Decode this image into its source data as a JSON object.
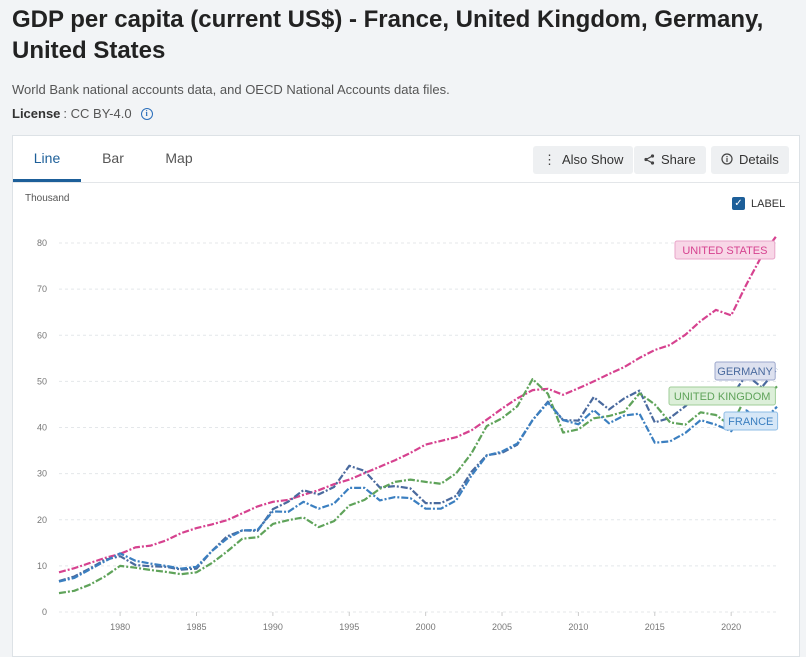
{
  "header": {
    "title": "GDP per capita (current US$) - France, United Kingdom, Germany, United States",
    "source": "World Bank national accounts data, and OECD National Accounts data files.",
    "license_label": "License",
    "license_value": " : CC BY-4.0"
  },
  "tabs": [
    {
      "label": "Line",
      "active": true
    },
    {
      "label": "Bar",
      "active": false
    },
    {
      "label": "Map",
      "active": false
    }
  ],
  "toolbar": {
    "also_show": "Also Show",
    "share": "Share",
    "details": "Details"
  },
  "label_toggle": {
    "label": "LABEL",
    "checked": true
  },
  "icons": {
    "info": "info-icon",
    "more": "more-vertical-icon",
    "share": "share-icon",
    "details": "info-circle-icon",
    "check": "check-icon"
  },
  "colors": {
    "accent": "#1d5f99",
    "united_states": "#d6428f",
    "germany": "#4a6a9e",
    "united_kingdom": "#5fa35a",
    "france": "#3b7fc0"
  },
  "chart_data": {
    "type": "line",
    "unit_label": "Thousand",
    "ylim": [
      0,
      80
    ],
    "yticks": [
      0,
      10,
      20,
      30,
      40,
      50,
      60,
      70,
      80
    ],
    "xlim": [
      1976,
      2023
    ],
    "xticks": [
      1980,
      1985,
      1990,
      1995,
      2000,
      2005,
      2010,
      2015,
      2020
    ],
    "grid": true,
    "series": [
      {
        "name": "UNITED STATES",
        "color": "#d6428f",
        "x": [
          1976,
          1977,
          1978,
          1979,
          1980,
          1981,
          1982,
          1983,
          1984,
          1985,
          1986,
          1987,
          1988,
          1989,
          1990,
          1991,
          1992,
          1993,
          1994,
          1995,
          1996,
          1997,
          1998,
          1999,
          2000,
          2001,
          2002,
          2003,
          2004,
          2005,
          2006,
          2007,
          2008,
          2009,
          2010,
          2011,
          2012,
          2013,
          2014,
          2015,
          2016,
          2017,
          2018,
          2019,
          2020,
          2021,
          2022,
          2023
        ],
        "y": [
          8.6,
          9.5,
          10.6,
          11.7,
          12.6,
          14.0,
          14.4,
          15.5,
          17.1,
          18.2,
          19.0,
          19.9,
          21.4,
          22.9,
          23.9,
          24.3,
          25.4,
          26.4,
          27.7,
          28.7,
          30.1,
          31.5,
          32.9,
          34.5,
          36.3,
          37.1,
          37.9,
          39.4,
          41.7,
          44.1,
          46.3,
          48.1,
          48.4,
          47.1,
          48.5,
          50.0,
          51.6,
          53.1,
          55.1,
          56.8,
          57.9,
          60.1,
          63.1,
          65.5,
          64.3,
          71.0,
          77.2,
          81.7
        ]
      },
      {
        "name": "GERMANY",
        "color": "#4a6a9e",
        "x": [
          1976,
          1977,
          1978,
          1979,
          1980,
          1981,
          1982,
          1983,
          1984,
          1985,
          1986,
          1987,
          1988,
          1989,
          1990,
          1991,
          1992,
          1993,
          1994,
          1995,
          1996,
          1997,
          1998,
          1999,
          2000,
          2001,
          2002,
          2003,
          2004,
          2005,
          2006,
          2007,
          2008,
          2009,
          2010,
          2011,
          2012,
          2013,
          2014,
          2015,
          2016,
          2017,
          2018,
          2019,
          2020,
          2021,
          2022,
          2023
        ],
        "y": [
          6.7,
          7.7,
          9.4,
          11.3,
          12.1,
          10.2,
          9.9,
          9.8,
          9.2,
          9.4,
          13.2,
          16.4,
          17.7,
          17.6,
          22.3,
          23.9,
          26.4,
          25.5,
          27.1,
          31.7,
          30.6,
          27.0,
          27.3,
          26.8,
          23.6,
          23.6,
          25.2,
          30.4,
          34.0,
          34.5,
          36.3,
          41.6,
          45.6,
          41.6,
          41.5,
          46.6,
          43.9,
          46.3,
          48.0,
          41.1,
          42.1,
          44.6,
          47.9,
          46.8,
          46.7,
          51.4,
          48.7,
          52.7
        ]
      },
      {
        "name": "UNITED KINGDOM",
        "color": "#5fa35a",
        "x": [
          1976,
          1977,
          1978,
          1979,
          1980,
          1981,
          1982,
          1983,
          1984,
          1985,
          1986,
          1987,
          1988,
          1989,
          1990,
          1991,
          1992,
          1993,
          1994,
          1995,
          1996,
          1997,
          1998,
          1999,
          2000,
          2001,
          2002,
          2003,
          2004,
          2005,
          2006,
          2007,
          2008,
          2009,
          2010,
          2011,
          2012,
          2013,
          2014,
          2015,
          2016,
          2017,
          2018,
          2019,
          2020,
          2021,
          2022,
          2023
        ],
        "y": [
          4.1,
          4.6,
          5.9,
          7.7,
          10.0,
          9.6,
          9.1,
          8.7,
          8.2,
          8.6,
          10.6,
          13.1,
          15.9,
          16.2,
          19.1,
          19.9,
          20.5,
          18.4,
          19.7,
          23.1,
          24.3,
          26.7,
          28.2,
          28.7,
          28.2,
          27.8,
          30.1,
          34.4,
          40.3,
          42.0,
          44.6,
          50.5,
          47.3,
          38.9,
          39.6,
          42.0,
          42.5,
          43.4,
          47.4,
          45.0,
          41.1,
          40.6,
          43.3,
          42.7,
          40.3,
          46.9,
          45.6,
          48.9
        ]
      },
      {
        "name": "FRANCE",
        "color": "#3b7fc0",
        "x": [
          1976,
          1977,
          1978,
          1979,
          1980,
          1981,
          1982,
          1983,
          1984,
          1985,
          1986,
          1987,
          1988,
          1989,
          1990,
          1991,
          1992,
          1993,
          1994,
          1995,
          1996,
          1997,
          1998,
          1999,
          2000,
          2001,
          2002,
          2003,
          2004,
          2005,
          2006,
          2007,
          2008,
          2009,
          2010,
          2011,
          2012,
          2013,
          2014,
          2015,
          2016,
          2017,
          2018,
          2019,
          2020,
          2021,
          2022,
          2023
        ],
        "y": [
          6.6,
          7.4,
          9.2,
          11.0,
          12.7,
          11.1,
          10.5,
          10.0,
          9.4,
          9.8,
          13.2,
          15.9,
          17.7,
          17.8,
          21.8,
          21.7,
          23.9,
          22.4,
          23.5,
          26.9,
          26.9,
          24.2,
          24.9,
          24.7,
          22.4,
          22.4,
          24.2,
          29.6,
          33.9,
          34.8,
          36.5,
          41.6,
          45.4,
          41.6,
          40.7,
          43.8,
          40.9,
          42.6,
          43.0,
          36.7,
          37.0,
          38.8,
          41.6,
          40.6,
          39.2,
          43.7,
          41.1,
          44.5
        ]
      }
    ]
  }
}
